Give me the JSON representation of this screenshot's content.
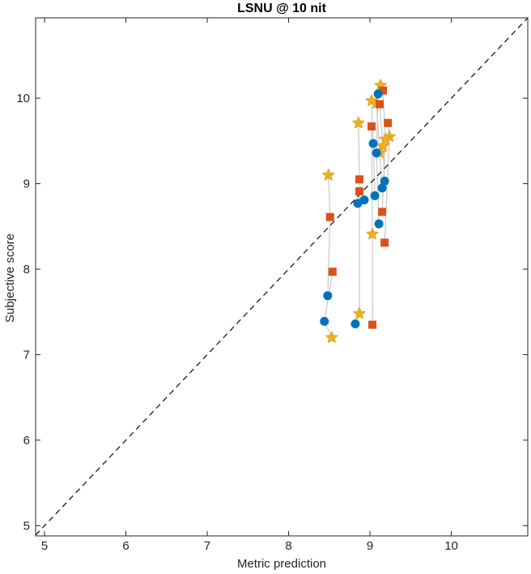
{
  "figure": {
    "background": "#ffffff",
    "axis_color": "#262626",
    "tick_label_color": "#262626"
  },
  "chart_data": {
    "type": "scatter",
    "title": "LSNU @ 10 nit",
    "xlabel": "Metric prediction",
    "ylabel": "Subjective score",
    "xlim": [
      4.89,
      10.94
    ],
    "ylim": [
      4.88,
      10.94
    ],
    "xticks": [
      5,
      6,
      7,
      8,
      9,
      10
    ],
    "yticks": [
      5,
      6,
      7,
      8,
      9,
      10
    ],
    "grid": false,
    "legend": "none",
    "box": true,
    "identity_line": {
      "style": "dashed",
      "color": "#1a1a1a",
      "from": 4.89,
      "to": 10.94
    },
    "connectors": {
      "color": "#C8C8C8",
      "polylines": [
        [
          [
            8.49,
            9.1
          ],
          [
            8.51,
            8.62
          ],
          [
            8.48,
            7.69
          ]
        ],
        [
          [
            8.54,
            7.97
          ],
          [
            8.44,
            7.39
          ],
          [
            8.53,
            7.2
          ]
        ],
        [
          [
            8.86,
            9.71
          ],
          [
            8.87,
            9.05
          ],
          [
            8.87,
            8.91
          ],
          [
            8.85,
            8.77
          ],
          [
            8.93,
            8.81
          ]
        ],
        [
          [
            8.87,
            8.91
          ],
          [
            8.87,
            7.48
          ],
          [
            8.82,
            7.36
          ]
        ],
        [
          [
            9.02,
            9.67
          ],
          [
            9.03,
            8.41
          ],
          [
            9.03,
            7.35
          ]
        ],
        [
          [
            9.02,
            9.97
          ],
          [
            9.04,
            9.47
          ],
          [
            9.06,
            8.86
          ]
        ],
        [
          [
            9.1,
            10.05
          ],
          [
            9.08,
            9.36
          ],
          [
            9.11,
            8.53
          ]
        ],
        [
          [
            9.08,
            9.94
          ],
          [
            9.12,
            9.36
          ],
          [
            9.15,
            8.95
          ]
        ],
        [
          [
            9.12,
            9.93
          ],
          [
            9.16,
            9.44
          ],
          [
            9.18,
            9.03
          ]
        ],
        [
          [
            9.16,
            10.09
          ],
          [
            9.19,
            9.52
          ],
          [
            9.15,
            8.67
          ]
        ],
        [
          [
            9.22,
            9.71
          ],
          [
            9.24,
            9.55
          ],
          [
            9.18,
            8.31
          ]
        ],
        [
          [
            9.13,
            10.15
          ],
          [
            9.16,
            10.09
          ],
          [
            9.1,
            10.05
          ]
        ]
      ]
    },
    "series": [
      {
        "name": "star-series",
        "marker": "pentagram",
        "color": "#EDB120",
        "edge_color": "#DFA520",
        "points": [
          [
            9.13,
            10.15
          ],
          [
            9.02,
            9.97
          ],
          [
            9.08,
            9.94
          ],
          [
            8.86,
            9.71
          ],
          [
            9.24,
            9.55
          ],
          [
            9.19,
            9.52
          ],
          [
            9.16,
            9.44
          ],
          [
            9.12,
            9.36
          ],
          [
            8.49,
            9.1
          ],
          [
            9.03,
            8.41
          ],
          [
            8.87,
            7.48
          ],
          [
            8.53,
            7.2
          ]
        ]
      },
      {
        "name": "square-series",
        "marker": "square",
        "color": "#D95319",
        "edge_color": "#D95319",
        "points": [
          [
            9.16,
            10.09
          ],
          [
            9.12,
            9.93
          ],
          [
            9.22,
            9.71
          ],
          [
            9.02,
            9.67
          ],
          [
            8.87,
            9.05
          ],
          [
            8.87,
            8.91
          ],
          [
            9.15,
            8.67
          ],
          [
            8.51,
            8.61
          ],
          [
            9.18,
            8.31
          ],
          [
            8.54,
            7.97
          ],
          [
            9.03,
            7.35
          ]
        ]
      },
      {
        "name": "circle-series",
        "marker": "circle",
        "color": "#0072BD",
        "edge_color": "#0072BD",
        "points": [
          [
            9.1,
            10.05
          ],
          [
            9.04,
            9.47
          ],
          [
            9.08,
            9.36
          ],
          [
            9.18,
            9.03
          ],
          [
            9.15,
            8.95
          ],
          [
            9.06,
            8.86
          ],
          [
            8.93,
            8.81
          ],
          [
            8.85,
            8.77
          ],
          [
            9.11,
            8.53
          ],
          [
            8.48,
            7.69
          ],
          [
            8.44,
            7.39
          ],
          [
            8.82,
            7.36
          ]
        ]
      }
    ]
  }
}
